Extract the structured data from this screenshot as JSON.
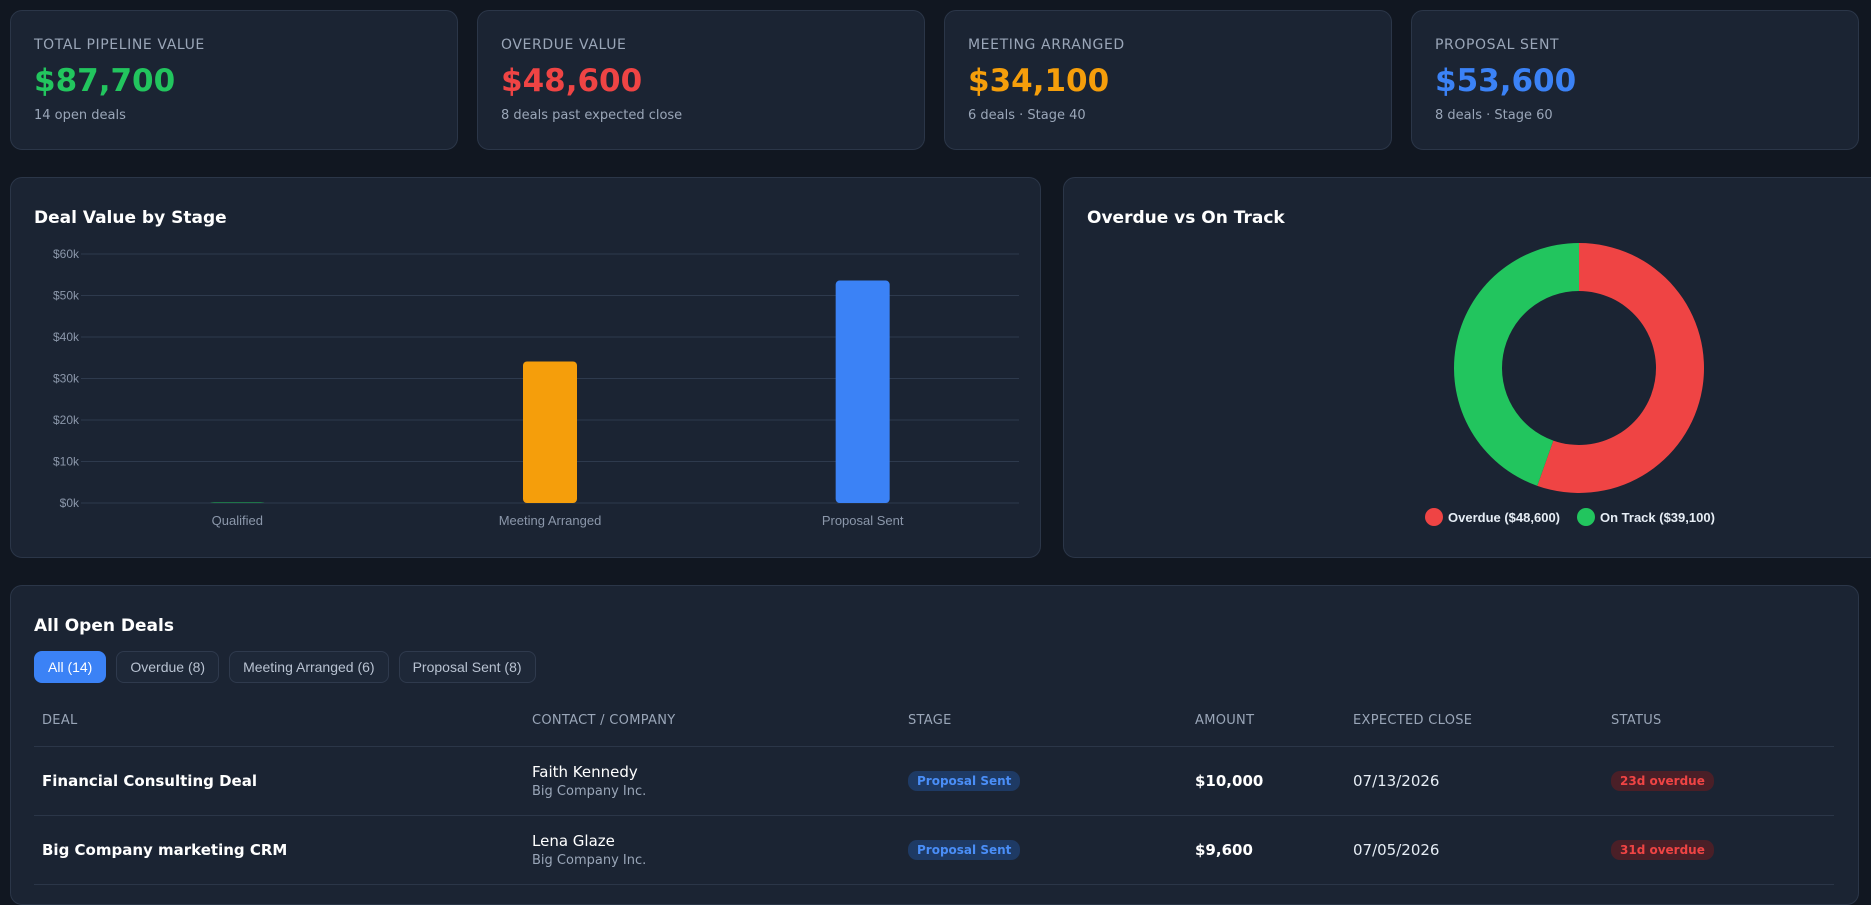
{
  "kpis": [
    {
      "label": "TOTAL PIPELINE VALUE",
      "value": "$87,700",
      "sub": "14 open deals",
      "color": "#22c55e"
    },
    {
      "label": "OVERDUE VALUE",
      "value": "$48,600",
      "sub": "8 deals past expected close",
      "color": "#ef4444"
    },
    {
      "label": "MEETING ARRANGED",
      "value": "$34,100",
      "sub": "6 deals · Stage 40",
      "color": "#f59e0b"
    },
    {
      "label": "PROPOSAL SENT",
      "value": "$53,600",
      "sub": "8 deals · Stage 60",
      "color": "#3b82f6"
    }
  ],
  "bar_card": {
    "title": "Deal Value by Stage"
  },
  "donut_card": {
    "title": "Overdue vs On Track"
  },
  "chart_data": [
    {
      "type": "bar",
      "title": "Deal Value by Stage",
      "categories": [
        "Qualified",
        "Meeting Arranged",
        "Proposal Sent"
      ],
      "values": [
        0,
        34100,
        53600
      ],
      "colors": [
        "#22c55e",
        "#f59e0b",
        "#3b82f6"
      ],
      "ylim": [
        0,
        60000
      ],
      "yticks": [
        "$0k",
        "$10k",
        "$20k",
        "$30k",
        "$40k",
        "$50k",
        "$60k"
      ],
      "grid": true
    },
    {
      "type": "pie",
      "title": "Overdue vs On Track",
      "donut": true,
      "series": [
        {
          "label": "Overdue ($48,600)",
          "value": 48600,
          "color": "#ef4444"
        },
        {
          "label": "On Track ($39,100)",
          "value": 39100,
          "color": "#22c55e"
        }
      ],
      "legend": "bottom"
    }
  ],
  "deals_section": {
    "title": "All Open Deals",
    "filters": [
      "All (14)",
      "Overdue (8)",
      "Meeting Arranged (6)",
      "Proposal Sent (8)"
    ],
    "active_filter": "All (14)",
    "columns": [
      "DEAL",
      "CONTACT / COMPANY",
      "STAGE",
      "AMOUNT",
      "EXPECTED CLOSE",
      "STATUS"
    ],
    "rows": [
      {
        "deal": "Financial Consulting Deal",
        "contact": "Faith Kennedy",
        "company": "Big Company Inc.",
        "stage": "Proposal Sent",
        "amount": "$10,000",
        "close": "07/13/2026",
        "status": "23d overdue"
      },
      {
        "deal": "Big Company marketing CRM",
        "contact": "Lena Glaze",
        "company": "Big Company Inc.",
        "stage": "Proposal Sent",
        "amount": "$9,600",
        "close": "07/05/2026",
        "status": "31d overdue"
      }
    ]
  }
}
